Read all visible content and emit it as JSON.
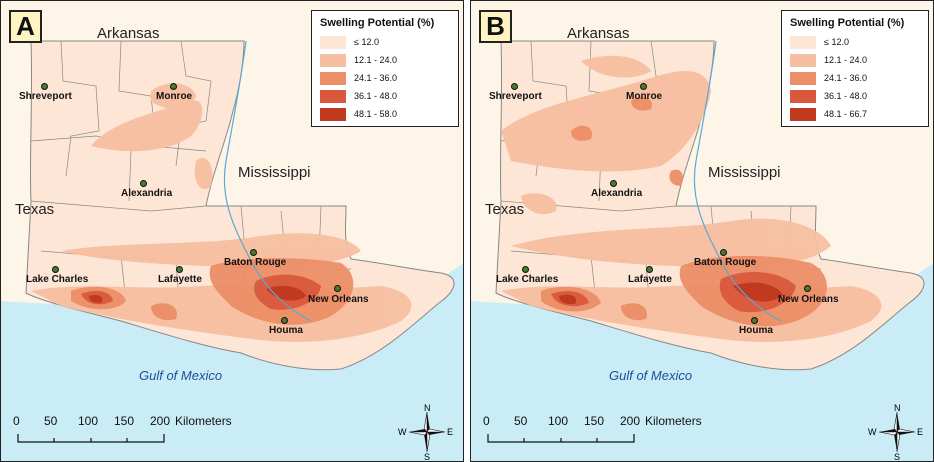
{
  "colors": {
    "water": "#c9ecf7",
    "land": "#fdeee2",
    "class1": "#fde6d6",
    "class2": "#f7bfa1",
    "class3": "#ec8e68",
    "class4": "#d9593b",
    "class5": "#c0391e",
    "city_dot": "#4a7a2c",
    "label_box": "#fff4c2"
  },
  "neighbors": {
    "arkansas": "Arkansas",
    "mississippi": "Mississippi",
    "texas": "Texas",
    "gulf": "Gulf of Mexico"
  },
  "cities": {
    "shreveport": "Shreveport",
    "monroe": "Monroe",
    "alexandria": "Alexandria",
    "lake_charles": "Lake Charles",
    "lafayette": "Lafayette",
    "baton_rouge": "Baton Rouge",
    "new_orleans": "New Orleans",
    "houma": "Houma"
  },
  "panels": [
    {
      "label": "A",
      "legend": {
        "title": "Swelling Potential (%)",
        "classes": [
          "≤ 12.0",
          "12.1 - 24.0",
          "24.1 - 36.0",
          "36.1 - 48.0",
          "48.1 - 58.0"
        ]
      }
    },
    {
      "label": "B",
      "legend": {
        "title": "Swelling Potential (%)",
        "classes": [
          "≤ 12.0",
          "12.1 - 24.0",
          "24.1 - 36.0",
          "36.1 - 48.0",
          "48.1 - 66.7"
        ]
      }
    }
  ],
  "scale_bar": {
    "ticks": [
      "0",
      "50",
      "100",
      "150",
      "200"
    ],
    "unit": "Kilometers"
  },
  "compass": {
    "n": "N",
    "s": "S",
    "e": "E",
    "w": "W"
  }
}
